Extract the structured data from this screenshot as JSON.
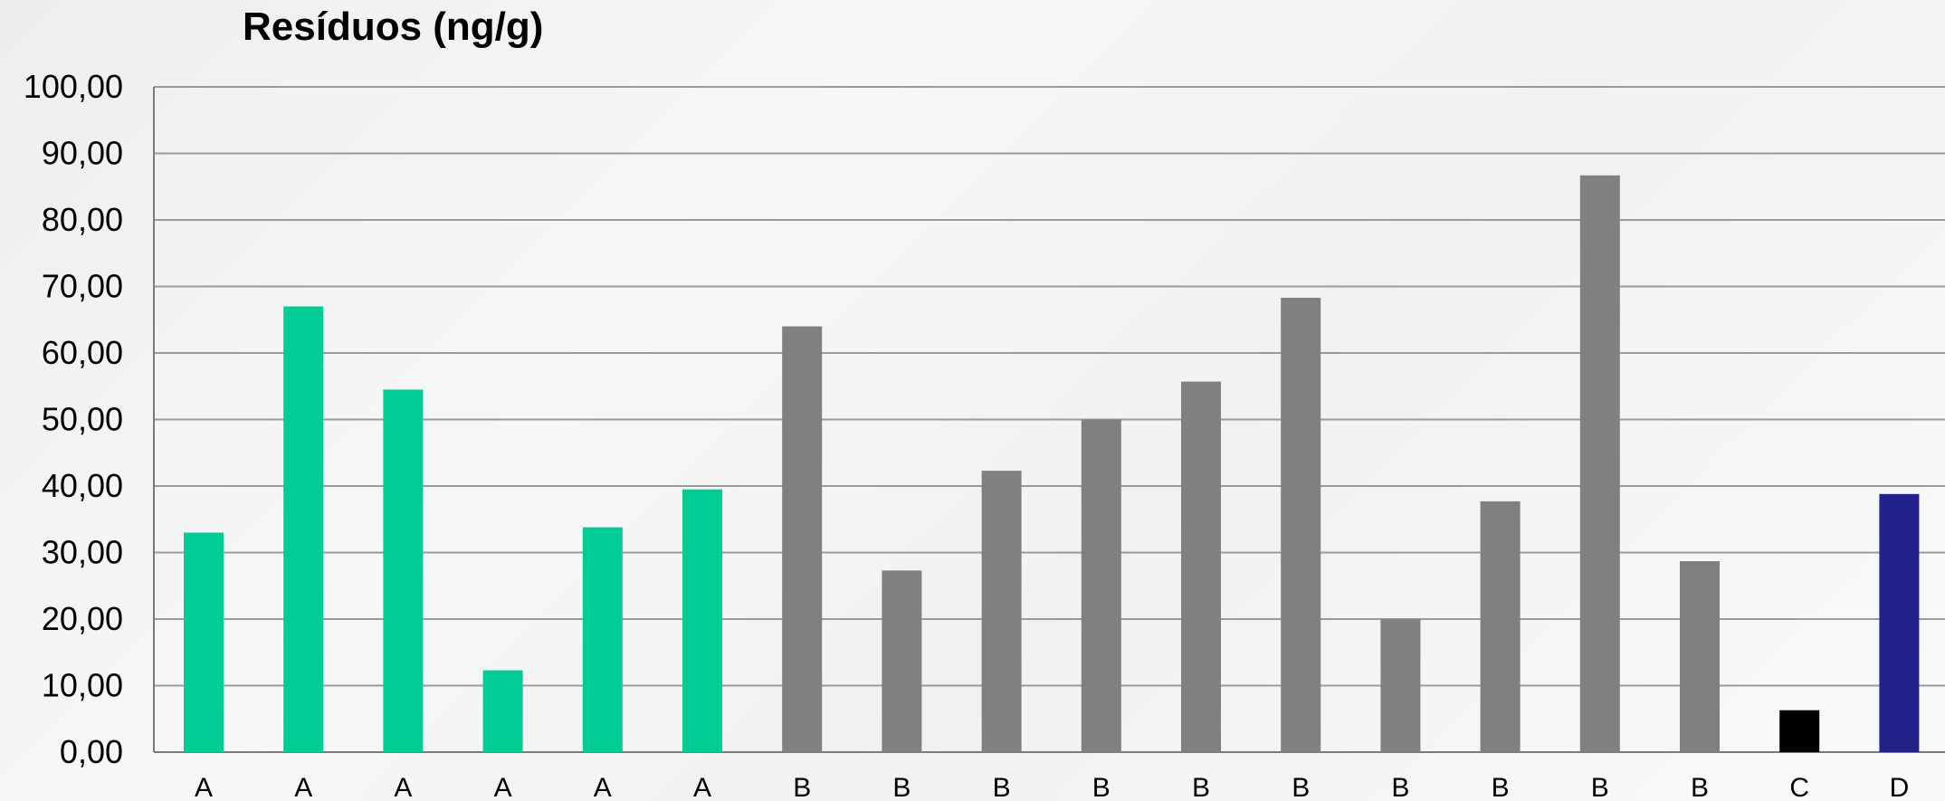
{
  "chart_data": {
    "type": "bar",
    "title": "Resíduos (ng/g)",
    "xlabel": "",
    "ylabel": "",
    "ylim": [
      0,
      100
    ],
    "y_ticks": [
      "0,00",
      "10,00",
      "20,00",
      "30,00",
      "40,00",
      "50,00",
      "60,00",
      "70,00",
      "80,00",
      "90,00",
      "100,00"
    ],
    "grid": true,
    "categories": [
      "A",
      "A",
      "A",
      "A",
      "A",
      "A",
      "B",
      "B",
      "B",
      "B",
      "B",
      "B",
      "B",
      "B",
      "B",
      "B",
      "C",
      "D"
    ],
    "values": [
      33.0,
      67.0,
      54.5,
      12.3,
      33.8,
      39.5,
      64.0,
      27.3,
      42.3,
      50.0,
      55.7,
      68.3,
      20.0,
      37.7,
      86.7,
      28.7,
      6.3,
      38.8
    ],
    "group_colors": {
      "A": "#00cc96",
      "B": "#808080",
      "C": "#000000",
      "D": "#22228a"
    }
  }
}
